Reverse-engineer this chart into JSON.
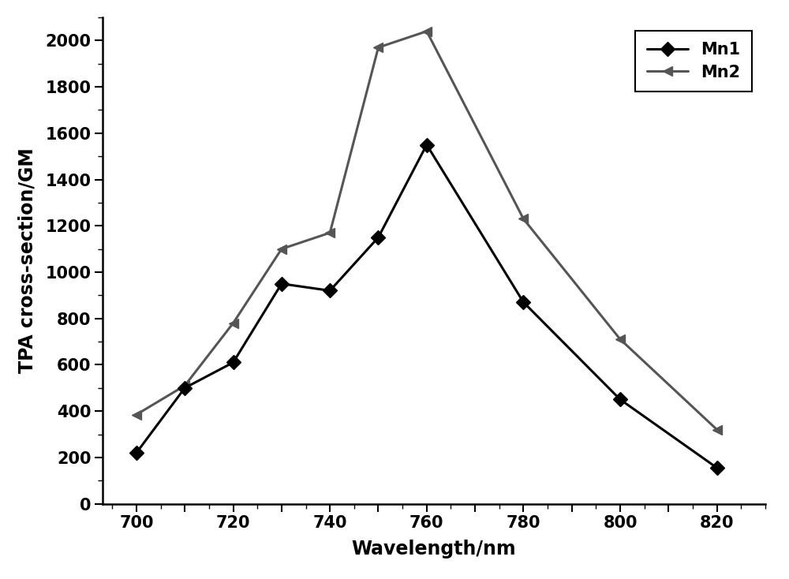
{
  "mn1_x": [
    700,
    710,
    720,
    730,
    740,
    750,
    760,
    780,
    800,
    820
  ],
  "mn1_y": [
    220,
    500,
    610,
    950,
    920,
    1150,
    1550,
    870,
    450,
    155
  ],
  "mn2_x": [
    700,
    710,
    720,
    730,
    740,
    750,
    760,
    780,
    800,
    820
  ],
  "mn2_y": [
    385,
    510,
    780,
    1100,
    1170,
    1970,
    2040,
    1230,
    710,
    320
  ],
  "mn1_color": "#000000",
  "mn2_color": "#555555",
  "mn1_label": "Mn1",
  "mn2_label": "Mn2",
  "xlabel": "Wavelength/nm",
  "ylabel": "TPA cross-section/GM",
  "xlim": [
    693,
    830
  ],
  "ylim": [
    0,
    2100
  ],
  "xticks": [
    700,
    710,
    720,
    730,
    740,
    750,
    760,
    770,
    780,
    790,
    800,
    810,
    820
  ],
  "xtick_labels": [
    "700",
    "",
    "720",
    "",
    "740",
    "",
    "760",
    "",
    "780",
    "",
    "800",
    "",
    "820"
  ],
  "yticks": [
    0,
    200,
    400,
    600,
    800,
    1000,
    1200,
    1400,
    1600,
    1800,
    2000
  ],
  "line_width": 2.2,
  "marker_size": 9,
  "legend_loc": "upper right",
  "background_color": "#ffffff"
}
